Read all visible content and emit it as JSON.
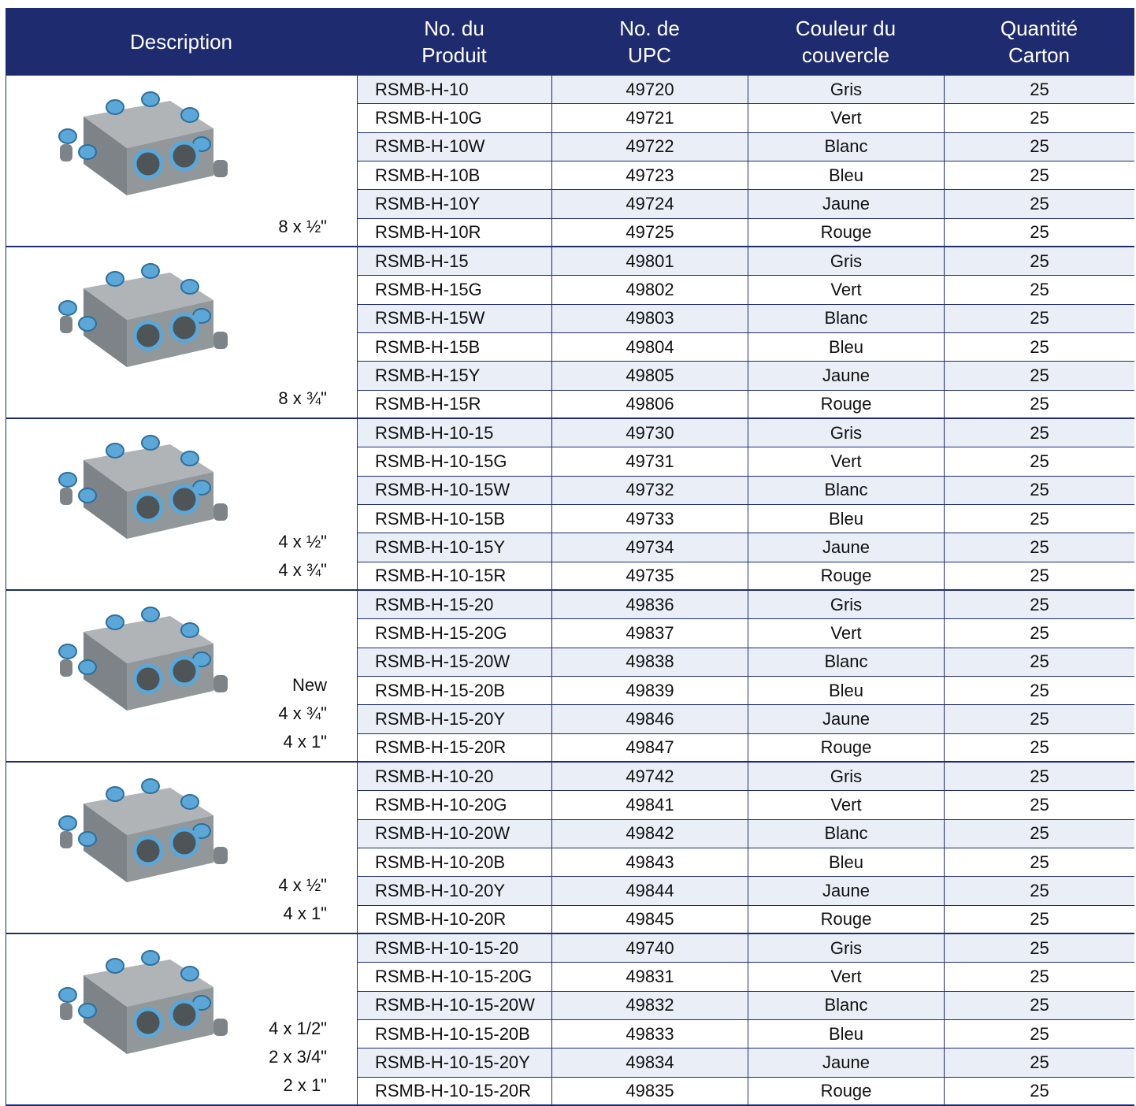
{
  "table": {
    "header": [
      [
        "Description"
      ],
      [
        "No. du",
        "Produit"
      ],
      [
        "No. de",
        "UPC"
      ],
      [
        "Couleur du",
        "couvercle"
      ],
      [
        "Quantité",
        "Carton"
      ]
    ],
    "groups": [
      {
        "description": [
          "8 x ½\""
        ],
        "rows": [
          [
            "RSMB-H-10",
            "49720",
            "Gris",
            "25"
          ],
          [
            "RSMB-H-10G",
            "49721",
            "Vert",
            "25"
          ],
          [
            "RSMB-H-10W",
            "49722",
            "Blanc",
            "25"
          ],
          [
            "RSMB-H-10B",
            "49723",
            "Bleu",
            "25"
          ],
          [
            "RSMB-H-10Y",
            "49724",
            "Jaune",
            "25"
          ],
          [
            "RSMB-H-10R",
            "49725",
            "Rouge",
            "25"
          ]
        ]
      },
      {
        "description": [
          "8 x ¾\""
        ],
        "rows": [
          [
            "RSMB-H-15",
            "49801",
            "Gris",
            "25"
          ],
          [
            "RSMB-H-15G",
            "49802",
            "Vert",
            "25"
          ],
          [
            "RSMB-H-15W",
            "49803",
            "Blanc",
            "25"
          ],
          [
            "RSMB-H-15B",
            "49804",
            "Bleu",
            "25"
          ],
          [
            "RSMB-H-15Y",
            "49805",
            "Jaune",
            "25"
          ],
          [
            "RSMB-H-15R",
            "49806",
            "Rouge",
            "25"
          ]
        ]
      },
      {
        "description": [
          "4 x ½\"",
          "4 x ¾\""
        ],
        "rows": [
          [
            "RSMB-H-10-15",
            "49730",
            "Gris",
            "25"
          ],
          [
            "RSMB-H-10-15G",
            "49731",
            "Vert",
            "25"
          ],
          [
            "RSMB-H-10-15W",
            "49732",
            "Blanc",
            "25"
          ],
          [
            "RSMB-H-10-15B",
            "49733",
            "Bleu",
            "25"
          ],
          [
            "RSMB-H-10-15Y",
            "49734",
            "Jaune",
            "25"
          ],
          [
            "RSMB-H-10-15R",
            "49735",
            "Rouge",
            "25"
          ]
        ]
      },
      {
        "description": [
          "New",
          "4 x ¾\"",
          "4 x 1\""
        ],
        "rows": [
          [
            "RSMB-H-15-20",
            "49836",
            "Gris",
            "25"
          ],
          [
            "RSMB-H-15-20G",
            "49837",
            "Vert",
            "25"
          ],
          [
            "RSMB-H-15-20W",
            "49838",
            "Blanc",
            "25"
          ],
          [
            "RSMB-H-15-20B",
            "49839",
            "Bleu",
            "25"
          ],
          [
            "RSMB-H-15-20Y",
            "49846",
            "Jaune",
            "25"
          ],
          [
            "RSMB-H-15-20R",
            "49847",
            "Rouge",
            "25"
          ]
        ]
      },
      {
        "description": [
          "4 x ½\"",
          "4 x 1\""
        ],
        "rows": [
          [
            "RSMB-H-10-20",
            "49742",
            "Gris",
            "25"
          ],
          [
            "RSMB-H-10-20G",
            "49841",
            "Vert",
            "25"
          ],
          [
            "RSMB-H-10-20W",
            "49842",
            "Blanc",
            "25"
          ],
          [
            "RSMB-H-10-20B",
            "49843",
            "Bleu",
            "25"
          ],
          [
            "RSMB-H-10-20Y",
            "49844",
            "Jaune",
            "25"
          ],
          [
            "RSMB-H-10-20R",
            "49845",
            "Rouge",
            "25"
          ]
        ]
      },
      {
        "description": [
          "4 x 1/2\"",
          "2 x 3/4\"",
          "2 x 1\""
        ],
        "rows": [
          [
            "RSMB-H-10-15-20",
            "49740",
            "Gris",
            "25"
          ],
          [
            "RSMB-H-10-15-20G",
            "49831",
            "Vert",
            "25"
          ],
          [
            "RSMB-H-10-15-20W",
            "49832",
            "Blanc",
            "25"
          ],
          [
            "RSMB-H-10-15-20B",
            "49833",
            "Bleu",
            "25"
          ],
          [
            "RSMB-H-10-15-20Y",
            "49834",
            "Jaune",
            "25"
          ],
          [
            "RSMB-H-10-15-20R",
            "49835",
            "Rouge",
            "25"
          ]
        ]
      }
    ]
  }
}
